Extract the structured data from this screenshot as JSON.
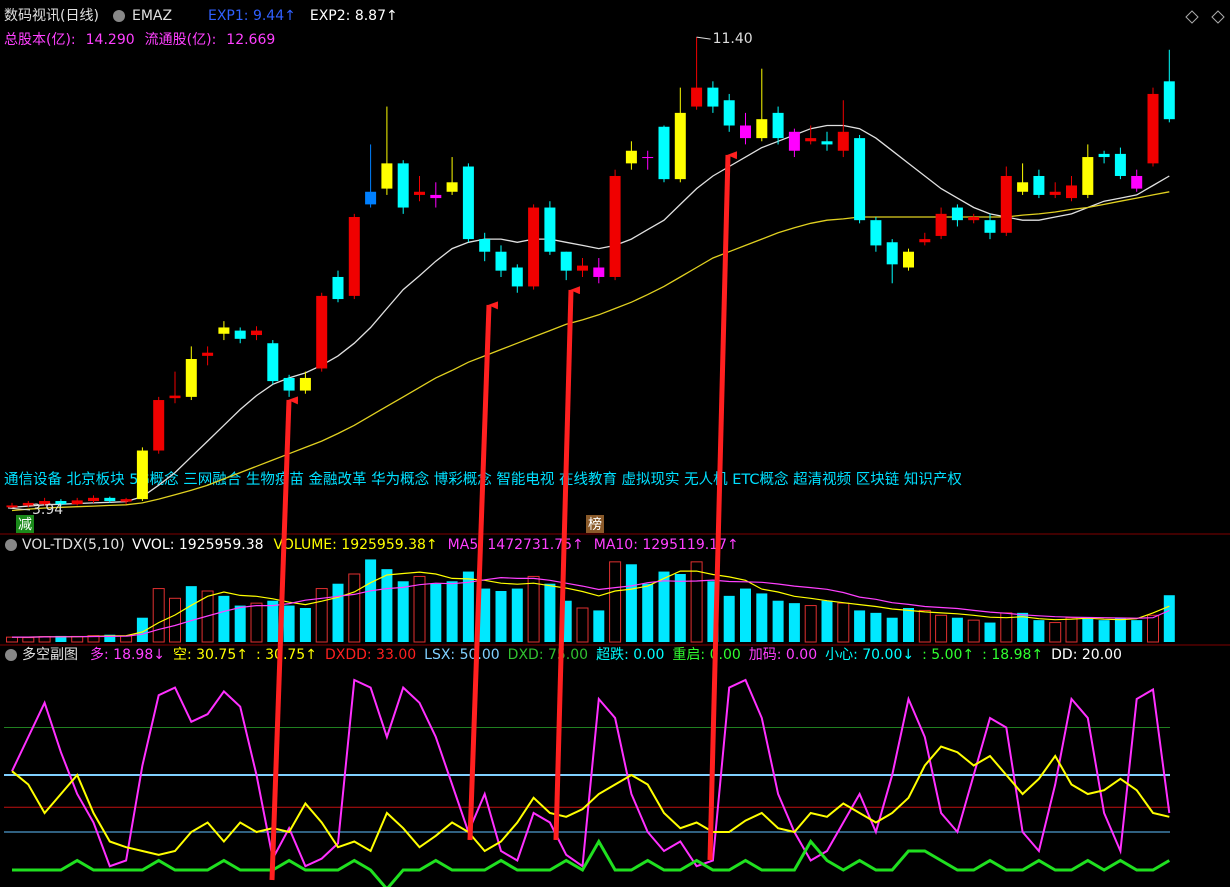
{
  "chart_data": [
    {
      "type": "candlestick",
      "title": "数码视讯(日线)",
      "indicator": "EMAZ",
      "header_texts": [
        {
          "text": "EXP1: 9.44↑",
          "color": "#3060ff"
        },
        {
          "text": "EXP2: 8.87↑",
          "color": "#ffffff"
        }
      ],
      "info_texts": [
        {
          "text": "总股本(亿):",
          "color": "#ff40ff"
        },
        {
          "text": "14.290",
          "color": "#ff40ff"
        },
        {
          "text": "流通股(亿):",
          "color": "#ff40ff"
        },
        {
          "text": "12.669",
          "color": "#ff40ff"
        }
      ],
      "high_label": {
        "value": 11.4,
        "label": "11.40"
      },
      "low_label": {
        "value": 3.94,
        "label": "3.94"
      },
      "concepts": "通信设备 北京板块 5G概念 三网融合 生物疫苗 金融改革 华为概念 博彩概念 智能电视 在线教育 虚拟现实 无人机 ETC概念 超清视频 区块链 知识产权",
      "badges": [
        {
          "text": "减",
          "color": "#1a8a1a"
        },
        {
          "text": "榜",
          "color": "#8a5a2a"
        }
      ],
      "ylim": [
        3.67,
        11.83
      ],
      "open": [
        3.95,
        3.98,
        4.0,
        4.05,
        4.0,
        4.05,
        4.1,
        4.04,
        4.08,
        4.85,
        5.68,
        5.7,
        6.35,
        6.7,
        6.75,
        6.68,
        6.55,
        6.0,
        5.8,
        6.15,
        7.6,
        7.3,
        8.75,
        9.0,
        9.4,
        8.9,
        8.9,
        8.95,
        9.35,
        8.2,
        8.0,
        7.75,
        7.45,
        8.7,
        8.0,
        7.7,
        7.75,
        7.6,
        9.4,
        9.5,
        9.98,
        9.15,
        10.3,
        10.6,
        10.4,
        10.0,
        9.8,
        10.2,
        9.9,
        9.75,
        9.75,
        9.9,
        9.8,
        8.5,
        8.15,
        7.75,
        8.15,
        8.25,
        8.7,
        8.55,
        8.5,
        8.3,
        8.95,
        9.2,
        8.9,
        8.85,
        8.9,
        9.55,
        9.55,
        9.0,
        9.4,
        10.7
      ],
      "high": [
        4.02,
        4.05,
        4.1,
        4.08,
        4.1,
        4.14,
        4.12,
        4.1,
        4.9,
        5.7,
        6.1,
        6.5,
        6.5,
        6.9,
        6.8,
        6.82,
        6.6,
        6.05,
        6.1,
        7.35,
        7.7,
        8.6,
        9.7,
        10.3,
        9.45,
        9.2,
        9.1,
        9.5,
        9.4,
        8.3,
        8.1,
        7.8,
        8.75,
        8.8,
        8.0,
        7.9,
        7.9,
        9.3,
        9.75,
        9.6,
        10.0,
        10.6,
        11.4,
        10.7,
        10.5,
        10.2,
        10.9,
        10.3,
        9.95,
        10.0,
        9.9,
        10.4,
        9.85,
        8.55,
        8.2,
        8.05,
        8.3,
        8.7,
        8.75,
        8.6,
        8.6,
        9.35,
        9.4,
        9.3,
        9.1,
        9.2,
        9.7,
        9.6,
        9.65,
        9.3,
        10.6,
        11.2
      ],
      "low": [
        3.94,
        3.95,
        3.98,
        3.97,
        3.98,
        4.02,
        4.02,
        4.0,
        4.05,
        4.8,
        5.6,
        5.65,
        6.2,
        6.6,
        6.55,
        6.6,
        5.9,
        5.7,
        5.75,
        6.1,
        7.2,
        7.25,
        8.7,
        8.9,
        8.6,
        8.8,
        8.7,
        8.9,
        8.15,
        7.85,
        7.6,
        7.35,
        7.4,
        7.95,
        7.55,
        7.6,
        7.5,
        7.55,
        9.3,
        9.3,
        9.1,
        9.1,
        10.25,
        10.2,
        9.9,
        9.7,
        9.75,
        9.7,
        9.5,
        9.7,
        9.6,
        9.5,
        8.45,
        8.0,
        7.5,
        7.7,
        8.1,
        8.2,
        8.4,
        8.45,
        8.2,
        8.25,
        8.9,
        8.85,
        8.85,
        8.8,
        8.85,
        9.4,
        9.15,
        8.95,
        9.35,
        10.05
      ],
      "close": [
        3.98,
        4.02,
        4.05,
        4.0,
        4.06,
        4.1,
        4.05,
        4.08,
        4.85,
        5.65,
        5.72,
        6.3,
        6.4,
        6.8,
        6.62,
        6.75,
        5.95,
        5.8,
        6.0,
        7.3,
        7.25,
        8.55,
        8.95,
        9.4,
        8.7,
        8.95,
        8.85,
        9.1,
        8.2,
        8.0,
        7.7,
        7.45,
        8.7,
        8.0,
        7.7,
        7.78,
        7.6,
        9.2,
        9.6,
        9.5,
        9.15,
        10.2,
        10.6,
        10.3,
        10.0,
        9.8,
        10.1,
        9.8,
        9.6,
        9.8,
        9.7,
        9.6,
        8.5,
        8.1,
        7.8,
        8.0,
        8.2,
        8.6,
        8.5,
        8.5,
        8.3,
        9.2,
        9.1,
        8.9,
        8.95,
        9.05,
        9.5,
        9.5,
        9.2,
        9.2,
        10.5,
        10.1
      ],
      "colors": [
        "#f00000",
        "#f00000",
        "#f00000",
        "#00ffff",
        "#f00000",
        "#f00000",
        "#00ffff",
        "#f00000",
        "#ffff00",
        "#f00000",
        "#f00000",
        "#ffff00",
        "#f00000",
        "#ffff00",
        "#00ffff",
        "#f00000",
        "#00ffff",
        "#00ffff",
        "#ffff00",
        "#f00000",
        "#00ffff",
        "#f00000",
        "#0080ff",
        "#ffff00",
        "#00ffff",
        "#f00000",
        "#ff00ff",
        "#ffff00",
        "#00ffff",
        "#00ffff",
        "#00ffff",
        "#00ffff",
        "#f00000",
        "#00ffff",
        "#00ffff",
        "#f00000",
        "#ff00ff",
        "#f00000",
        "#ffff00",
        "#ff00ff",
        "#00ffff",
        "#ffff00",
        "#f00000",
        "#00ffff",
        "#00ffff",
        "#ff00ff",
        "#ffff00",
        "#00ffff",
        "#ff00ff",
        "#f00000",
        "#00ffff",
        "#f00000",
        "#00ffff",
        "#00ffff",
        "#00ffff",
        "#ffff00",
        "#f00000",
        "#f00000",
        "#00ffff",
        "#f00000",
        "#00ffff",
        "#f00000",
        "#ffff00",
        "#00ffff",
        "#f00000",
        "#f00000",
        "#ffff00",
        "#00ffff",
        "#00ffff",
        "#ff00ff",
        "#f00000",
        "#00ffff"
      ],
      "series": [
        {
          "color": "#e0e0e0",
          "values": [
            3.95,
            3.97,
            3.99,
            4.0,
            4.01,
            4.02,
            4.03,
            4.04,
            4.12,
            4.3,
            4.5,
            4.75,
            5.0,
            5.25,
            5.5,
            5.72,
            5.9,
            6.0,
            6.08,
            6.2,
            6.35,
            6.55,
            6.8,
            7.1,
            7.4,
            7.62,
            7.85,
            8.05,
            8.15,
            8.2,
            8.2,
            8.15,
            8.2,
            8.2,
            8.15,
            8.1,
            8.05,
            8.1,
            8.2,
            8.35,
            8.5,
            8.75,
            9.0,
            9.2,
            9.35,
            9.5,
            9.65,
            9.75,
            9.85,
            9.95,
            10.0,
            10.0,
            9.95,
            9.8,
            9.6,
            9.4,
            9.2,
            9.0,
            8.85,
            8.7,
            8.6,
            8.55,
            8.5,
            8.5,
            8.55,
            8.6,
            8.7,
            8.8,
            8.85,
            8.9,
            9.05,
            9.2
          ]
        },
        {
          "color": "#e0d020",
          "values": [
            3.9,
            3.92,
            3.94,
            3.95,
            3.96,
            3.97,
            3.98,
            3.99,
            4.02,
            4.08,
            4.15,
            4.22,
            4.3,
            4.4,
            4.5,
            4.6,
            4.7,
            4.8,
            4.9,
            5.0,
            5.12,
            5.25,
            5.4,
            5.55,
            5.7,
            5.85,
            6.0,
            6.12,
            6.25,
            6.35,
            6.45,
            6.55,
            6.65,
            6.75,
            6.85,
            6.92,
            7.0,
            7.1,
            7.2,
            7.32,
            7.45,
            7.6,
            7.75,
            7.9,
            8.0,
            8.1,
            8.2,
            8.3,
            8.38,
            8.45,
            8.5,
            8.52,
            8.55,
            8.55,
            8.55,
            8.55,
            8.55,
            8.55,
            8.55,
            8.55,
            8.55,
            8.55,
            8.58,
            8.6,
            8.63,
            8.67,
            8.7,
            8.75,
            8.8,
            8.85,
            8.9,
            8.95
          ]
        }
      ]
    },
    {
      "type": "bar",
      "title": "VOL-TDX(5,10)",
      "header_texts": [
        {
          "text": "VVOL: 1925959.38",
          "color": "#ffffff"
        },
        {
          "text": "VOLUME: 1925959.38↑",
          "color": "#ffff00"
        },
        {
          "text": "MA5: 1472731.75↑",
          "color": "#ff40ff"
        },
        {
          "text": "MA10: 1295119.17↑",
          "color": "#ff40ff"
        }
      ],
      "ylim": [
        0,
        3500000
      ],
      "values": [
        200000,
        180000,
        220000,
        250000,
        230000,
        260000,
        300000,
        250000,
        1000000,
        2200000,
        1800000,
        2300000,
        2100000,
        1900000,
        1500000,
        1600000,
        1700000,
        1500000,
        1400000,
        2200000,
        2400000,
        2800000,
        3400000,
        3000000,
        2500000,
        2700000,
        2400000,
        2500000,
        2900000,
        2200000,
        2100000,
        2200000,
        2700000,
        2400000,
        1700000,
        1400000,
        1300000,
        3300000,
        3200000,
        2400000,
        2900000,
        2800000,
        3300000,
        2500000,
        1900000,
        2200000,
        2000000,
        1700000,
        1600000,
        1500000,
        1700000,
        1600000,
        1300000,
        1200000,
        1000000,
        1400000,
        1300000,
        1100000,
        1000000,
        900000,
        800000,
        1200000,
        1200000,
        900000,
        800000,
        1000000,
        1000000,
        900000,
        1000000,
        900000,
        1100000,
        1925959.38
      ],
      "series": [
        {
          "color": "#ffff00",
          "values": [
            200000,
            200000,
            210000,
            220000,
            220000,
            230000,
            250000,
            260000,
            410000,
            800000,
            1110000,
            1510000,
            1880000,
            2060000,
            1920000,
            1880000,
            1780000,
            1640000,
            1540000,
            1680000,
            1840000,
            2060000,
            2440000,
            2760000,
            2820000,
            2880000,
            2800000,
            2620000,
            2600000,
            2540000,
            2420000,
            2380000,
            2420000,
            2320000,
            2220000,
            2080000,
            1900000,
            2100000,
            2180000,
            2300000,
            2620000,
            2920000,
            2920000,
            2780000,
            2680000,
            2540000,
            2180000,
            2060000,
            1880000,
            1800000,
            1700000,
            1620000,
            1540000,
            1460000,
            1360000,
            1300000,
            1240000,
            1200000,
            1160000,
            1100000,
            1020000,
            1000000,
            1040000,
            960000,
            920000,
            940000,
            980000,
            940000,
            920000,
            960000,
            1200000,
            1472731.75
          ]
        },
        {
          "color": "#ff40ff",
          "values": [
            200000,
            200000,
            210000,
            215000,
            220000,
            225000,
            230000,
            240000,
            320000,
            520000,
            680000,
            880000,
            1070000,
            1260000,
            1420000,
            1500000,
            1500000,
            1580000,
            1720000,
            1800000,
            1880000,
            1960000,
            2110000,
            2200000,
            2250000,
            2360000,
            2420000,
            2400000,
            2460000,
            2560000,
            2650000,
            2620000,
            2620000,
            2540000,
            2420000,
            2300000,
            2160000,
            2240000,
            2310000,
            2440000,
            2520000,
            2500000,
            2510000,
            2550000,
            2490000,
            2480000,
            2460000,
            2390000,
            2300000,
            2240000,
            2170000,
            2040000,
            1850000,
            1760000,
            1620000,
            1550000,
            1460000,
            1420000,
            1380000,
            1300000,
            1230000,
            1180000,
            1120000,
            1080000,
            1040000,
            1020000,
            1010000,
            1000000,
            990000,
            980000,
            1000000,
            1295119.17
          ]
        }
      ]
    },
    {
      "type": "line",
      "title": "多空副图",
      "header_texts": [
        {
          "text": "多: 18.98↓",
          "color": "#ff40ff"
        },
        {
          "text": "空: 30.75↑",
          "color": "#ffff00"
        },
        {
          "text": ": 30.75↑",
          "color": "#ffff00"
        },
        {
          "text": "DXDD: 33.00",
          "color": "#ff2020"
        },
        {
          "text": "LSX: 50.00",
          "color": "#80d0ff"
        },
        {
          "text": "DXD: 75.00",
          "color": "#30c030"
        },
        {
          "text": "超跌: 0.00",
          "color": "#00ffff"
        },
        {
          "text": "重启: 0.00",
          "color": "#30ff30"
        },
        {
          "text": "加码: 0.00",
          "color": "#ff40ff"
        },
        {
          "text": "小心: 70.00↓",
          "color": "#00ffff"
        },
        {
          "text": ": 5.00↑",
          "color": "#30ff30"
        },
        {
          "text": ": 18.98↑",
          "color": "#30ff30"
        },
        {
          "text": "DD: 20.00",
          "color": "#ffffff"
        }
      ],
      "ylim": [
        0,
        100
      ],
      "reference_lines": [
        {
          "value": 75,
          "color": "#208020"
        },
        {
          "value": 50,
          "color": "#80d0ff"
        },
        {
          "value": 33,
          "color": "#c01010"
        },
        {
          "value": 20,
          "color": "#60c0ff"
        }
      ],
      "series": [
        {
          "color": "#ff30ff",
          "values": [
            52,
            70,
            88,
            62,
            40,
            25,
            2,
            5,
            55,
            92,
            96,
            78,
            82,
            94,
            86,
            50,
            6,
            22,
            2,
            6,
            14,
            100,
            96,
            70,
            96,
            88,
            70,
            45,
            20,
            40,
            10,
            5,
            30,
            25,
            8,
            2,
            90,
            80,
            40,
            20,
            10,
            15,
            2,
            5,
            96,
            100,
            80,
            40,
            20,
            5,
            10,
            25,
            40,
            20,
            50,
            90,
            70,
            30,
            20,
            50,
            80,
            75,
            20,
            10,
            45,
            90,
            80,
            30,
            10,
            90,
            95,
            30
          ]
        },
        {
          "color": "#ffff00",
          "values": [
            52,
            45,
            30,
            40,
            50,
            30,
            15,
            12,
            10,
            8,
            10,
            20,
            25,
            15,
            25,
            20,
            22,
            20,
            35,
            25,
            12,
            15,
            10,
            30,
            22,
            12,
            18,
            25,
            20,
            10,
            15,
            25,
            38,
            30,
            28,
            32,
            40,
            45,
            50,
            45,
            30,
            22,
            25,
            20,
            20,
            26,
            30,
            22,
            20,
            30,
            28,
            35,
            30,
            25,
            30,
            38,
            55,
            65,
            62,
            55,
            60,
            50,
            40,
            48,
            60,
            45,
            40,
            42,
            48,
            42,
            30,
            28
          ]
        },
        {
          "color": "#20e020",
          "values": [
            0,
            0,
            0,
            0,
            5,
            0,
            0,
            0,
            0,
            5,
            0,
            0,
            0,
            5,
            0,
            0,
            0,
            5,
            0,
            0,
            0,
            5,
            0,
            -10,
            0,
            0,
            5,
            0,
            0,
            0,
            5,
            0,
            0,
            0,
            5,
            0,
            15,
            0,
            0,
            5,
            0,
            0,
            5,
            0,
            0,
            5,
            0,
            0,
            0,
            15,
            5,
            0,
            5,
            0,
            0,
            10,
            10,
            5,
            0,
            0,
            5,
            0,
            0,
            5,
            0,
            0,
            5,
            0,
            5,
            0,
            0,
            5
          ]
        }
      ]
    }
  ]
}
